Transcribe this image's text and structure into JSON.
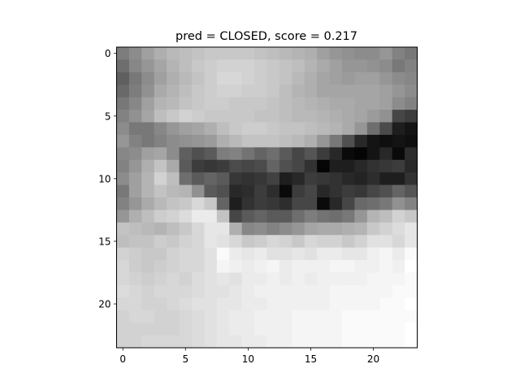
{
  "chart_data": {
    "type": "heatmap",
    "title": "pred = CLOSED, score = 0.217",
    "xlabel": "",
    "ylabel": "",
    "colormap": "gray",
    "vmin": 0,
    "vmax": 255,
    "xlim": [
      -0.5,
      23.5
    ],
    "ylim": [
      23.5,
      -0.5
    ],
    "xticks": [
      0,
      5,
      10,
      15,
      20
    ],
    "yticks": [
      0,
      5,
      10,
      15,
      20
    ],
    "xtick_labels": [
      "0",
      "5",
      "10",
      "15",
      "20"
    ],
    "ytick_labels": [
      "0",
      "5",
      "10",
      "15",
      "20"
    ],
    "grid": false,
    "z": [
      [
        125,
        140,
        160,
        175,
        185,
        190,
        195,
        200,
        200,
        200,
        200,
        195,
        190,
        185,
        180,
        175,
        160,
        150,
        145,
        140,
        140,
        150,
        130,
        120
      ],
      [
        110,
        135,
        150,
        165,
        180,
        190,
        200,
        205,
        210,
        210,
        210,
        205,
        200,
        195,
        190,
        180,
        170,
        160,
        150,
        150,
        145,
        140,
        120,
        130
      ],
      [
        95,
        120,
        140,
        160,
        175,
        185,
        195,
        205,
        215,
        215,
        210,
        205,
        200,
        195,
        185,
        175,
        165,
        160,
        155,
        160,
        160,
        150,
        140,
        135
      ],
      [
        105,
        125,
        145,
        170,
        180,
        190,
        200,
        205,
        210,
        210,
        205,
        205,
        200,
        190,
        180,
        175,
        165,
        165,
        165,
        165,
        165,
        160,
        150,
        140
      ],
      [
        120,
        135,
        160,
        180,
        185,
        195,
        200,
        205,
        205,
        200,
        200,
        200,
        195,
        190,
        185,
        180,
        175,
        170,
        170,
        165,
        165,
        160,
        140,
        130
      ],
      [
        130,
        145,
        165,
        190,
        200,
        210,
        205,
        200,
        200,
        200,
        200,
        195,
        195,
        190,
        185,
        185,
        180,
        175,
        170,
        165,
        155,
        145,
        70,
        60
      ],
      [
        140,
        120,
        120,
        135,
        150,
        160,
        165,
        175,
        190,
        200,
        205,
        205,
        200,
        195,
        195,
        190,
        185,
        180,
        170,
        150,
        110,
        75,
        30,
        20
      ],
      [
        150,
        130,
        120,
        130,
        140,
        145,
        150,
        155,
        175,
        185,
        195,
        195,
        195,
        190,
        185,
        175,
        150,
        120,
        80,
        40,
        20,
        15,
        20,
        15
      ],
      [
        135,
        140,
        160,
        165,
        140,
        95,
        80,
        90,
        125,
        130,
        115,
        100,
        110,
        90,
        70,
        85,
        60,
        40,
        10,
        5,
        20,
        40,
        10,
        45
      ],
      [
        130,
        150,
        175,
        195,
        170,
        90,
        60,
        55,
        60,
        75,
        70,
        75,
        100,
        80,
        70,
        50,
        5,
        30,
        30,
        40,
        50,
        55,
        60,
        40
      ],
      [
        140,
        160,
        180,
        210,
        190,
        110,
        90,
        100,
        90,
        55,
        50,
        55,
        65,
        30,
        40,
        60,
        55,
        50,
        40,
        35,
        45,
        30,
        30,
        50
      ],
      [
        120,
        160,
        180,
        195,
        185,
        180,
        145,
        90,
        80,
        40,
        45,
        60,
        45,
        10,
        60,
        70,
        40,
        50,
        60,
        55,
        70,
        80,
        100,
        85
      ],
      [
        130,
        150,
        170,
        185,
        195,
        200,
        215,
        200,
        100,
        30,
        50,
        60,
        55,
        45,
        70,
        70,
        10,
        40,
        70,
        105,
        110,
        120,
        145,
        130
      ],
      [
        150,
        175,
        190,
        205,
        210,
        220,
        235,
        235,
        195,
        70,
        90,
        100,
        90,
        90,
        110,
        125,
        115,
        110,
        120,
        150,
        180,
        190,
        210,
        200
      ],
      [
        195,
        190,
        185,
        180,
        190,
        200,
        215,
        230,
        230,
        175,
        135,
        140,
        130,
        140,
        150,
        165,
        170,
        170,
        175,
        180,
        200,
        210,
        220,
        230
      ],
      [
        190,
        195,
        195,
        205,
        200,
        210,
        215,
        230,
        225,
        215,
        200,
        205,
        215,
        210,
        200,
        215,
        210,
        210,
        200,
        210,
        225,
        225,
        215,
        230
      ],
      [
        210,
        205,
        200,
        200,
        210,
        215,
        215,
        225,
        250,
        235,
        230,
        235,
        225,
        225,
        230,
        225,
        235,
        235,
        230,
        230,
        240,
        245,
        235,
        250
      ],
      [
        215,
        205,
        200,
        205,
        210,
        215,
        215,
        225,
        245,
        240,
        235,
        240,
        245,
        235,
        240,
        240,
        240,
        245,
        245,
        240,
        240,
        245,
        240,
        255
      ],
      [
        215,
        210,
        205,
        210,
        215,
        210,
        220,
        225,
        230,
        225,
        235,
        235,
        240,
        235,
        240,
        235,
        240,
        240,
        240,
        240,
        245,
        245,
        245,
        250
      ],
      [
        220,
        215,
        210,
        215,
        215,
        215,
        220,
        225,
        225,
        230,
        235,
        240,
        240,
        240,
        240,
        240,
        240,
        245,
        245,
        245,
        245,
        245,
        250,
        250
      ],
      [
        215,
        215,
        210,
        210,
        215,
        220,
        225,
        225,
        230,
        230,
        235,
        235,
        240,
        240,
        240,
        240,
        240,
        245,
        245,
        245,
        245,
        250,
        250,
        255
      ],
      [
        210,
        215,
        215,
        210,
        210,
        215,
        220,
        225,
        230,
        235,
        235,
        240,
        240,
        240,
        245,
        245,
        245,
        245,
        250,
        250,
        250,
        250,
        250,
        250
      ],
      [
        210,
        210,
        210,
        210,
        210,
        215,
        220,
        225,
        230,
        235,
        235,
        240,
        240,
        240,
        245,
        245,
        245,
        245,
        250,
        250,
        250,
        250,
        250,
        255
      ],
      [
        210,
        210,
        215,
        215,
        215,
        215,
        220,
        225,
        230,
        230,
        235,
        235,
        240,
        240,
        245,
        245,
        245,
        245,
        250,
        250,
        250,
        250,
        250,
        255
      ]
    ]
  }
}
